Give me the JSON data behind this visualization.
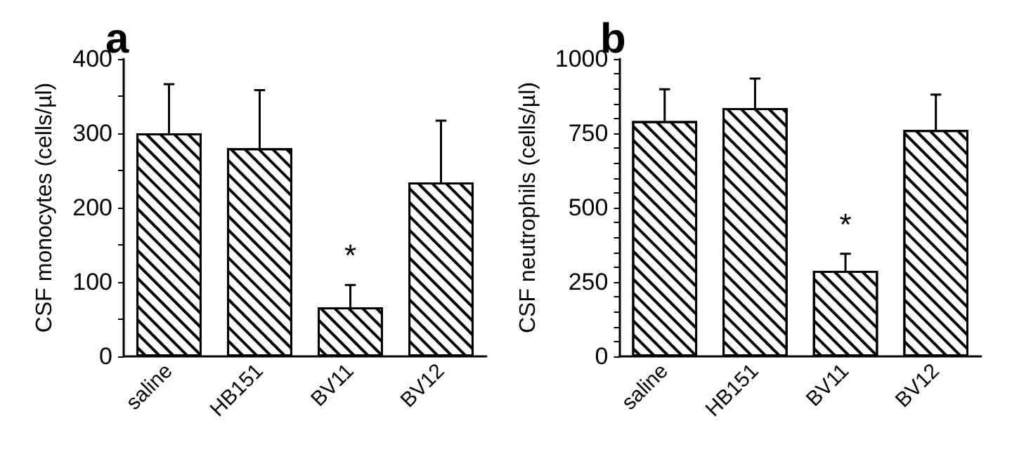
{
  "chart_data": [
    {
      "type": "bar",
      "title": "a",
      "ylabel": "CSF monocytes (cells/µl)",
      "categories": [
        "saline",
        "HB151",
        "BV11",
        "BV12"
      ],
      "values": [
        300,
        280,
        66,
        234
      ],
      "errors": [
        [
          300,
          366
        ],
        [
          280,
          358
        ],
        [
          66,
          96
        ],
        [
          234,
          317
        ]
      ],
      "ylim": [
        0,
        400
      ],
      "yticks": [
        0,
        {
          "value": 50,
          "label": null
        },
        100,
        {
          "value": 150,
          "label": null
        },
        200,
        {
          "value": 250,
          "label": null
        },
        300,
        {
          "value": 350,
          "label": null
        },
        400
      ],
      "annotations": [
        "*"
      ]
    },
    {
      "type": "bar",
      "title": "b",
      "ylabel": "CSF neutrophils (cells/µl)",
      "categories": [
        "saline",
        "HB151",
        "BV11",
        "BV12"
      ],
      "values": [
        791,
        835,
        288,
        761
      ],
      "errors": [
        [
          791,
          898
        ],
        [
          835,
          934
        ],
        [
          288,
          345
        ],
        [
          761,
          880
        ]
      ],
      "ylim": [
        0,
        1000
      ],
      "yticks": [
        0,
        {
          "value": 50,
          "label": null
        },
        {
          "value": 100,
          "label": null
        },
        {
          "value": 150,
          "label": null
        },
        {
          "value": 200,
          "label": null
        },
        250,
        {
          "value": 300,
          "label": null
        },
        {
          "value": 350,
          "label": null
        },
        {
          "value": 400,
          "label": null
        },
        {
          "value": 450,
          "label": null
        },
        500,
        {
          "value": 550,
          "label": null
        },
        {
          "value": 600,
          "label": null
        },
        {
          "value": 650,
          "label": null
        },
        {
          "value": 700,
          "label": null
        },
        750,
        {
          "value": 800,
          "label": null
        },
        {
          "value": 850,
          "label": null
        },
        {
          "value": 900,
          "label": null
        },
        {
          "value": 950,
          "label": null
        },
        1000
      ],
      "annotations": [
        "*"
      ]
    }
  ]
}
